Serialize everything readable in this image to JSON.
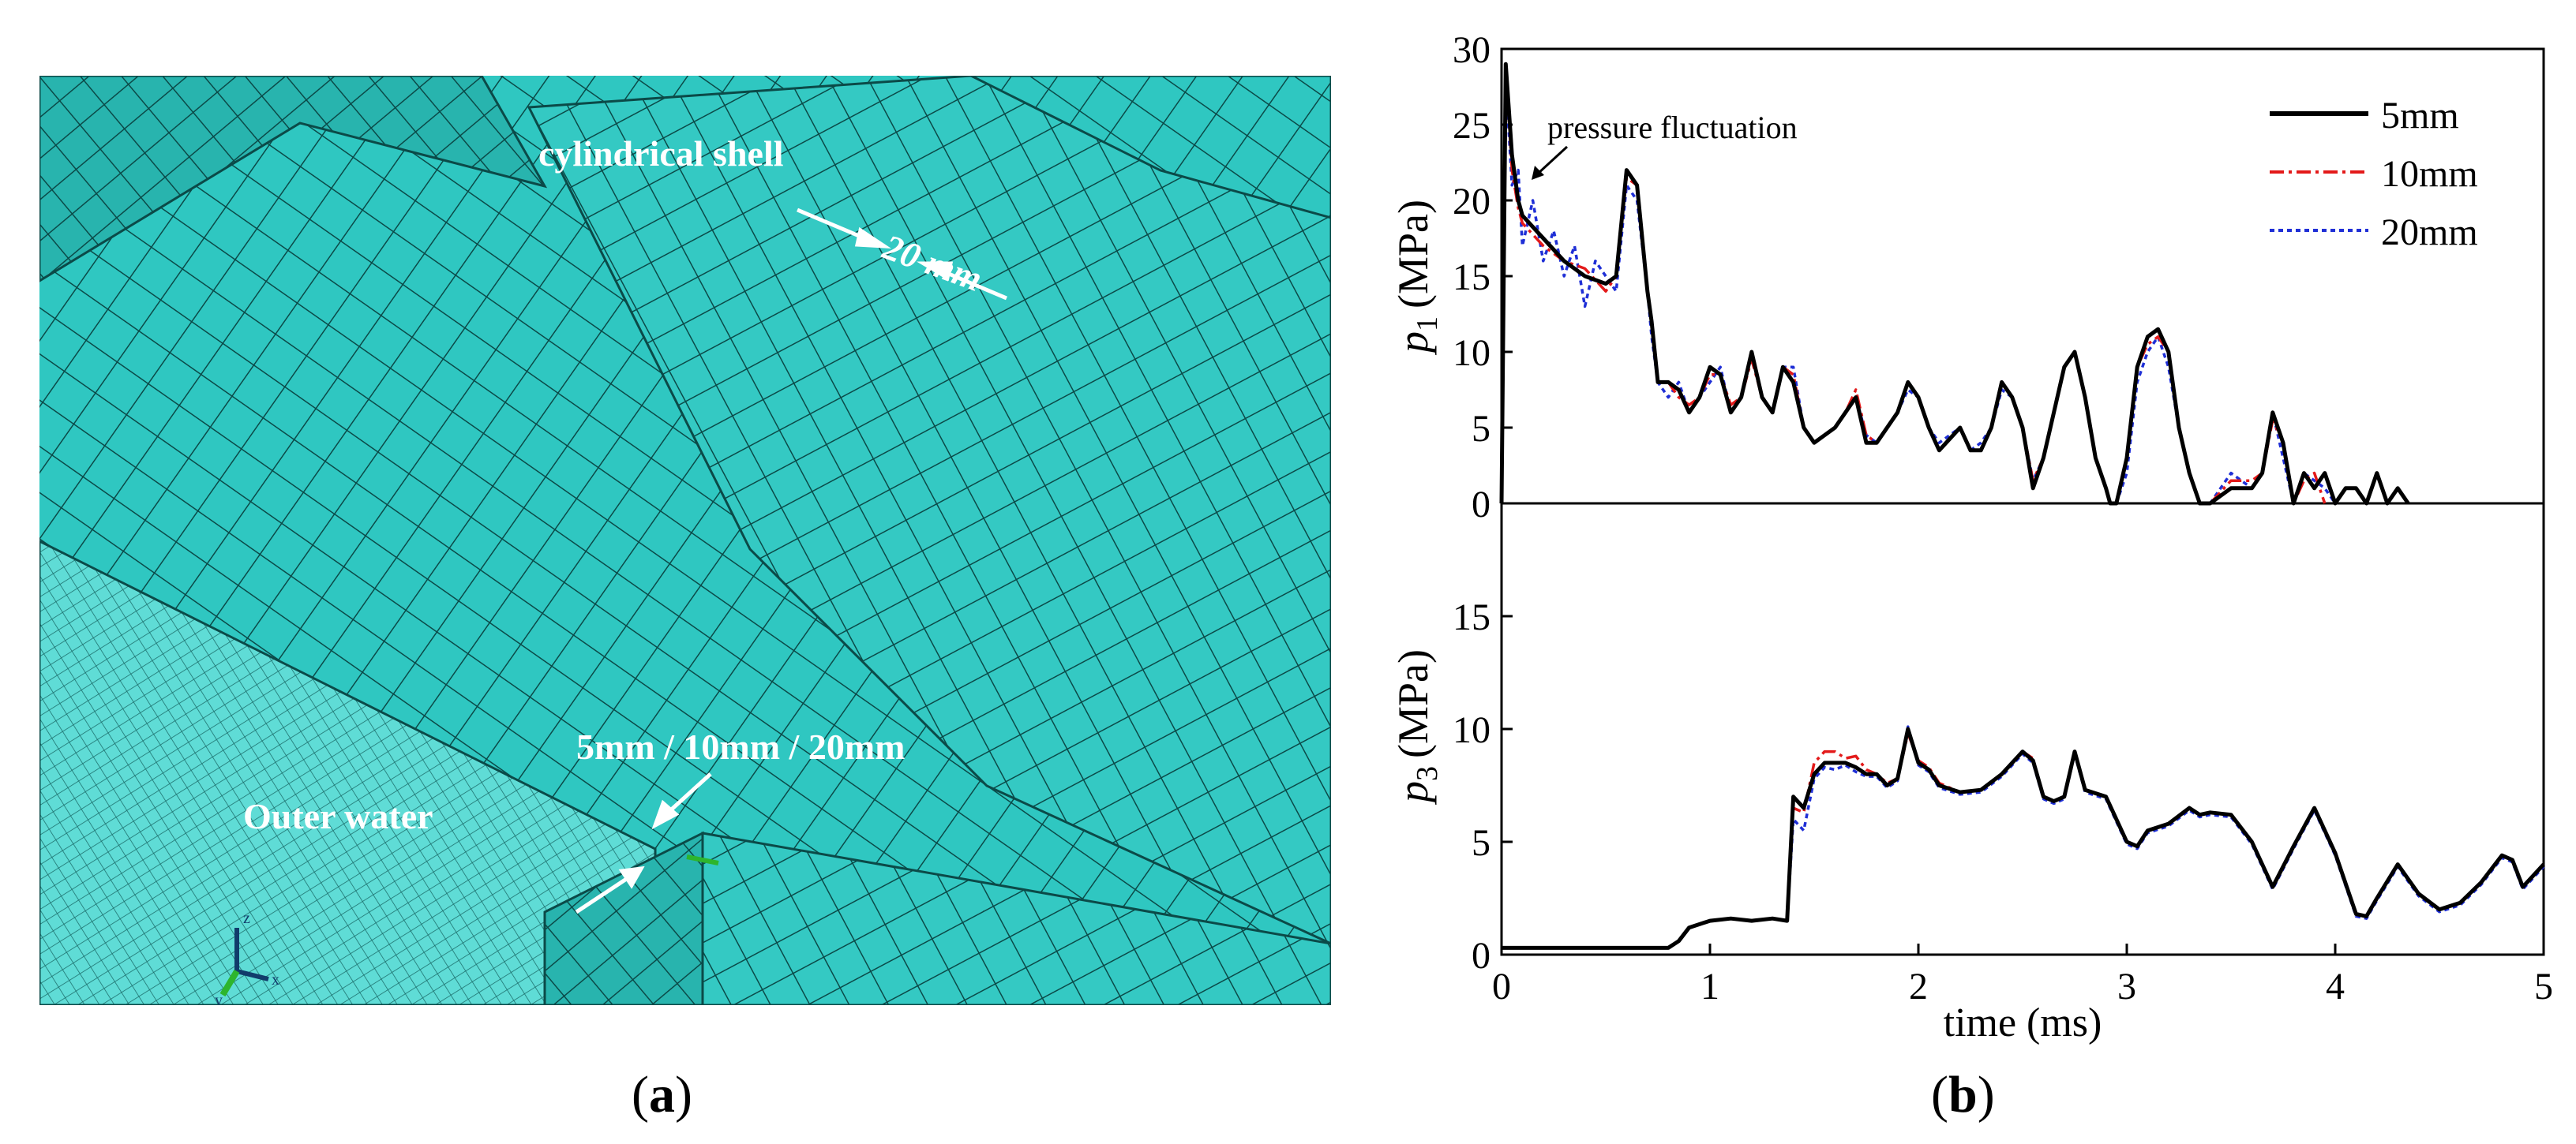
{
  "figure": {
    "panel_a": {
      "caption_letter": "a",
      "labels": {
        "cylindrical_shell": "cylindrical shell",
        "shell_size": "20 mm",
        "water_sizes": "5mm / 10mm / 20mm",
        "outer_water": "Outer water"
      },
      "colors": {
        "mesh_fill": "#2fc7c1",
        "mesh_line": "#0b4a48",
        "label_text": "#ffffff"
      }
    },
    "panel_b": {
      "caption_letter": "b"
    }
  },
  "chart_data": [
    {
      "type": "line",
      "id": "p1",
      "ylabel_symbol": "p",
      "ylabel_subscript": "1",
      "ylabel_unit": "(MPa)",
      "xlim": [
        0,
        5
      ],
      "ylim": [
        0,
        30
      ],
      "yticks": [
        0,
        5,
        10,
        15,
        20,
        25,
        30
      ],
      "annotation": "pressure fluctuation",
      "legend": {
        "position": "top-right"
      },
      "series": [
        {
          "name": "5mm",
          "color": "#000000",
          "style": "solid",
          "x": [
            0.0,
            0.02,
            0.05,
            0.08,
            0.1,
            0.2,
            0.3,
            0.4,
            0.5,
            0.55,
            0.6,
            0.65,
            0.7,
            0.72,
            0.75,
            0.8,
            0.85,
            0.9,
            0.95,
            1.0,
            1.05,
            1.1,
            1.15,
            1.2,
            1.25,
            1.3,
            1.35,
            1.4,
            1.45,
            1.5,
            1.6,
            1.65,
            1.7,
            1.75,
            1.8,
            1.9,
            1.95,
            2.0,
            2.05,
            2.1,
            2.2,
            2.25,
            2.3,
            2.35,
            2.4,
            2.45,
            2.5,
            2.55,
            2.6,
            2.7,
            2.75,
            2.8,
            2.85,
            2.9,
            2.92,
            2.95,
            3.0,
            3.05,
            3.1,
            3.15,
            3.2,
            3.25,
            3.3,
            3.35,
            3.4,
            3.5,
            3.6,
            3.65,
            3.7,
            3.75,
            3.8,
            3.85,
            3.9,
            3.95,
            4.0,
            4.05,
            4.1,
            4.15,
            4.2,
            4.25,
            4.3,
            4.35
          ],
          "y": [
            0,
            29,
            23,
            20,
            19,
            17.5,
            16,
            15,
            14.5,
            15,
            22,
            21,
            14,
            12,
            8,
            8,
            7.5,
            6,
            7,
            9,
            8.5,
            6,
            7,
            10,
            7,
            6,
            9,
            8,
            5,
            4,
            5,
            6,
            7,
            4,
            4,
            6,
            8,
            7,
            5,
            3.5,
            5,
            3.5,
            3.5,
            5,
            8,
            7,
            5,
            1,
            3,
            9,
            10,
            7,
            3,
            1,
            0,
            0,
            3,
            9,
            11,
            11.5,
            10,
            5,
            2,
            0,
            0,
            1,
            1,
            2,
            6,
            4,
            0,
            2,
            1,
            2,
            0,
            1,
            1,
            0,
            2,
            0,
            1,
            0
          ]
        },
        {
          "name": "10mm",
          "color": "#e31a1a",
          "style": "dashdot",
          "x": [
            0.0,
            0.02,
            0.05,
            0.08,
            0.1,
            0.2,
            0.3,
            0.4,
            0.5,
            0.55,
            0.6,
            0.65,
            0.7,
            0.72,
            0.75,
            0.8,
            0.85,
            0.9,
            0.95,
            1.0,
            1.05,
            1.1,
            1.15,
            1.2,
            1.25,
            1.3,
            1.35,
            1.4,
            1.45,
            1.5,
            1.6,
            1.65,
            1.7,
            1.75,
            1.8,
            1.9,
            1.95,
            2.0,
            2.05,
            2.1,
            2.2,
            2.25,
            2.3,
            2.35,
            2.4,
            2.45,
            2.5,
            2.55,
            2.6,
            2.7,
            2.75,
            2.8,
            2.85,
            2.9,
            2.92,
            2.95,
            3.0,
            3.05,
            3.1,
            3.15,
            3.2,
            3.25,
            3.3,
            3.35,
            3.4,
            3.5,
            3.6,
            3.65,
            3.7,
            3.75,
            3.8,
            3.85,
            3.9,
            3.95
          ],
          "y": [
            0,
            29,
            22,
            19.5,
            18.5,
            17,
            16,
            15.5,
            14,
            15,
            21.5,
            21,
            14,
            12,
            8,
            8,
            7,
            6.5,
            7,
            8.5,
            8.5,
            6.5,
            7,
            9.5,
            7,
            6,
            9,
            8.5,
            5,
            4,
            5,
            6,
            7.5,
            4.5,
            4,
            6,
            8,
            7,
            5,
            3.5,
            5,
            3.5,
            3.5,
            5,
            8,
            7,
            5,
            1.5,
            3,
            9,
            10,
            7,
            3,
            1,
            0,
            0,
            3,
            9,
            10.5,
            11,
            10,
            5,
            2,
            0,
            0,
            1.5,
            1.5,
            2,
            5.5,
            4,
            0,
            1.5,
            2,
            0
          ]
        },
        {
          "name": "20mm",
          "color": "#1f2fd6",
          "style": "dotted",
          "x": [
            0.0,
            0.02,
            0.05,
            0.08,
            0.1,
            0.15,
            0.2,
            0.25,
            0.3,
            0.35,
            0.4,
            0.45,
            0.5,
            0.55,
            0.6,
            0.65,
            0.7,
            0.72,
            0.75,
            0.8,
            0.85,
            0.9,
            0.95,
            1.0,
            1.05,
            1.1,
            1.15,
            1.2,
            1.25,
            1.3,
            1.35,
            1.4,
            1.45,
            1.5,
            1.6,
            1.65,
            1.7,
            1.75,
            1.8,
            1.9,
            1.95,
            2.0,
            2.05,
            2.1,
            2.2,
            2.25,
            2.3,
            2.35,
            2.4,
            2.45,
            2.5,
            2.55,
            2.6,
            2.7,
            2.75,
            2.8,
            2.85,
            2.9,
            2.92,
            2.95,
            3.0,
            3.05,
            3.1,
            3.15,
            3.2,
            3.25,
            3.3,
            3.35,
            3.4,
            3.5,
            3.6,
            3.65,
            3.7,
            3.75,
            3.8,
            3.85,
            3.9,
            3.95,
            4.0
          ],
          "y": [
            0,
            28,
            21,
            22,
            17,
            20,
            16,
            18,
            15,
            17,
            13,
            16,
            15,
            14,
            21,
            20,
            14,
            11,
            8,
            7,
            8,
            6,
            7,
            8,
            9,
            6,
            7,
            10,
            7,
            6,
            9,
            9,
            5,
            4,
            5,
            6,
            7,
            4.5,
            4,
            6,
            7.5,
            7,
            5,
            4,
            5,
            3.5,
            4,
            5,
            7.5,
            7,
            5,
            1.5,
            3,
            9,
            10,
            7,
            3,
            1,
            0,
            0,
            2,
            8,
            10,
            11,
            9,
            5,
            2,
            0,
            0,
            2,
            1,
            2,
            6,
            3,
            0,
            2,
            1.5,
            1,
            0
          ]
        }
      ]
    },
    {
      "type": "line",
      "id": "p3",
      "xlabel": "time (ms)",
      "ylabel_symbol": "p",
      "ylabel_subscript": "3",
      "ylabel_unit": "(MPa)",
      "xlim": [
        0,
        5
      ],
      "ylim": [
        0,
        20
      ],
      "yticks": [
        0,
        5,
        10,
        15
      ],
      "xticks": [
        0,
        1,
        2,
        3,
        4,
        5
      ],
      "series": [
        {
          "name": "5mm",
          "color": "#000000",
          "style": "solid",
          "x": [
            0.0,
            0.8,
            0.85,
            0.9,
            1.0,
            1.1,
            1.2,
            1.3,
            1.37,
            1.4,
            1.45,
            1.5,
            1.55,
            1.6,
            1.65,
            1.7,
            1.75,
            1.8,
            1.85,
            1.9,
            1.95,
            2.0,
            2.05,
            2.1,
            2.2,
            2.3,
            2.4,
            2.5,
            2.55,
            2.6,
            2.65,
            2.7,
            2.75,
            2.8,
            2.9,
            3.0,
            3.05,
            3.1,
            3.2,
            3.3,
            3.35,
            3.4,
            3.5,
            3.6,
            3.7,
            3.8,
            3.9,
            4.0,
            4.1,
            4.15,
            4.2,
            4.3,
            4.4,
            4.5,
            4.6,
            4.7,
            4.8,
            4.85,
            4.9,
            5.0
          ],
          "y": [
            0.3,
            0.3,
            0.6,
            1.2,
            1.5,
            1.6,
            1.5,
            1.6,
            1.5,
            7,
            6.5,
            8,
            8.5,
            8.5,
            8.5,
            8.3,
            8,
            8,
            7.5,
            7.8,
            10,
            8.5,
            8.2,
            7.5,
            7.2,
            7.3,
            8,
            9,
            8.6,
            7,
            6.8,
            7,
            9,
            7.3,
            7,
            5,
            4.8,
            5.5,
            5.8,
            6.5,
            6.2,
            6.3,
            6.2,
            5,
            3,
            4.8,
            6.5,
            4.5,
            1.8,
            1.7,
            2.5,
            4,
            2.7,
            2.0,
            2.3,
            3.2,
            4.4,
            4.2,
            3.0,
            4.0
          ]
        },
        {
          "name": "10mm",
          "color": "#e31a1a",
          "style": "dashdot",
          "x": [
            0.0,
            0.8,
            0.85,
            0.9,
            1.0,
            1.1,
            1.2,
            1.3,
            1.37,
            1.4,
            1.45,
            1.5,
            1.55,
            1.6,
            1.65,
            1.7,
            1.75,
            1.8,
            1.85,
            1.9,
            1.95,
            2.0,
            2.05,
            2.1,
            2.2,
            2.3,
            2.4,
            2.5,
            2.55,
            2.6,
            2.65,
            2.7,
            2.75,
            2.8,
            2.9,
            3.0,
            3.05,
            3.1,
            3.2,
            3.3,
            3.35,
            3.4,
            3.5,
            3.6,
            3.7,
            3.8,
            3.9,
            4.0,
            4.1,
            4.15,
            4.2,
            4.3,
            4.4,
            4.5,
            4.6,
            4.7,
            4.8,
            4.85,
            4.9,
            5.0
          ],
          "y": [
            0.3,
            0.3,
            0.6,
            1.2,
            1.5,
            1.6,
            1.5,
            1.6,
            1.5,
            6.5,
            6.3,
            8.5,
            9,
            9,
            8.7,
            8.8,
            8.2,
            8,
            7.6,
            7.8,
            9.8,
            8.6,
            8.3,
            7.6,
            7.2,
            7.3,
            8,
            9,
            8.7,
            7,
            6.8,
            7,
            9,
            7.3,
            7,
            5,
            4.8,
            5.5,
            5.8,
            6.5,
            6.2,
            6.3,
            6.2,
            5,
            3,
            4.8,
            6.5,
            4.5,
            1.8,
            1.7,
            2.5,
            4,
            2.7,
            2.0,
            2.3,
            3.2,
            4.4,
            4.2,
            3.0,
            4.0
          ]
        },
        {
          "name": "20mm",
          "color": "#1f2fd6",
          "style": "dotted",
          "x": [
            0.0,
            0.8,
            0.85,
            0.9,
            1.0,
            1.1,
            1.2,
            1.3,
            1.37,
            1.4,
            1.45,
            1.5,
            1.55,
            1.6,
            1.65,
            1.7,
            1.75,
            1.8,
            1.85,
            1.9,
            1.95,
            2.0,
            2.05,
            2.1,
            2.2,
            2.3,
            2.4,
            2.5,
            2.55,
            2.6,
            2.65,
            2.7,
            2.75,
            2.8,
            2.9,
            3.0,
            3.05,
            3.1,
            3.2,
            3.3,
            3.35,
            3.4,
            3.5,
            3.6,
            3.7,
            3.8,
            3.9,
            4.0,
            4.1,
            4.15,
            4.2,
            4.3,
            4.4,
            4.5,
            4.6,
            4.7,
            4.8,
            4.85,
            4.9,
            5.0
          ],
          "y": [
            0.3,
            0.3,
            0.6,
            1.2,
            1.5,
            1.6,
            1.5,
            1.6,
            1.5,
            6,
            5.5,
            7.8,
            8.3,
            8.2,
            8.4,
            8.1,
            7.9,
            7.9,
            7.4,
            7.7,
            10.1,
            8.4,
            8.1,
            7.4,
            7.1,
            7.2,
            7.9,
            8.9,
            8.5,
            6.9,
            6.7,
            6.9,
            8.9,
            7.2,
            6.9,
            4.9,
            4.7,
            5.4,
            5.7,
            6.4,
            6.1,
            6.2,
            6.1,
            4.9,
            2.9,
            4.7,
            6.4,
            4.4,
            1.7,
            1.6,
            2.4,
            3.9,
            2.6,
            1.9,
            2.2,
            3.1,
            4.3,
            4.1,
            2.9,
            3.9
          ]
        }
      ]
    }
  ]
}
